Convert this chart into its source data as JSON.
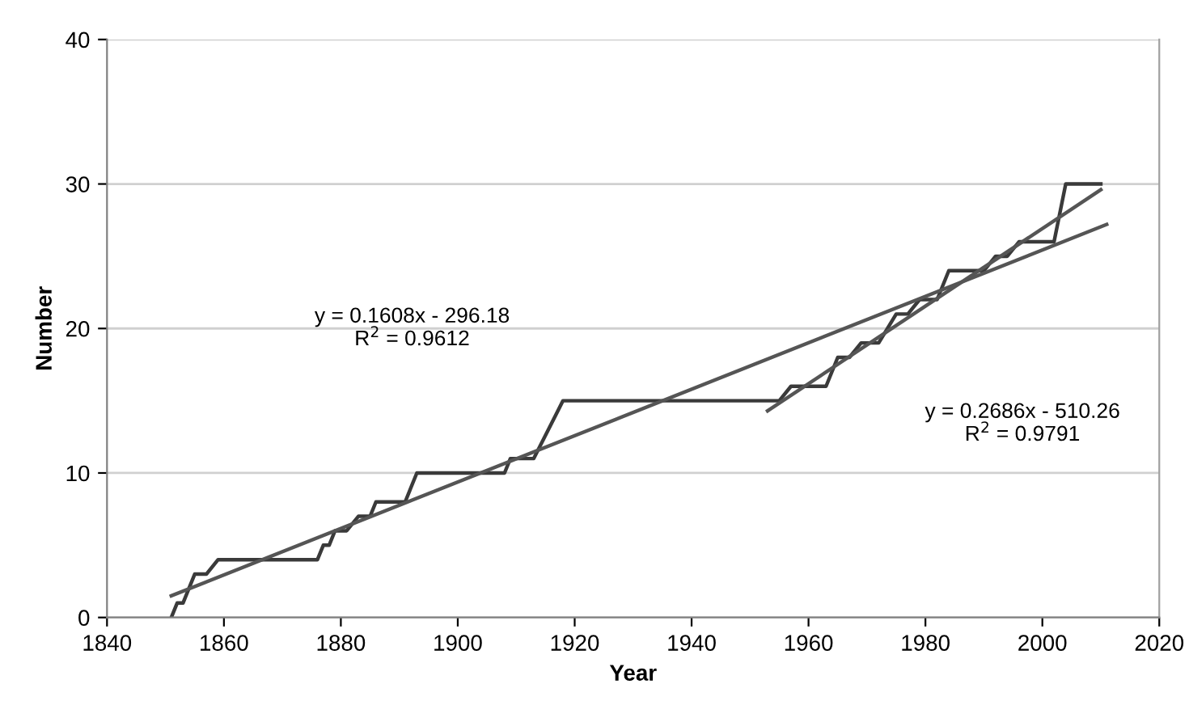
{
  "chart_data": {
    "type": "line",
    "xlabel": "Year",
    "ylabel": "Number",
    "xlim": [
      1840,
      2020
    ],
    "xticks": [
      1840,
      1860,
      1880,
      1900,
      1920,
      1940,
      1960,
      1980,
      2000,
      2020
    ],
    "ylim": [
      0,
      40
    ],
    "yticks": [
      0,
      10,
      20,
      30,
      40
    ],
    "grid": "y",
    "legend": false,
    "marker": "none",
    "line_style": "solid",
    "series": [
      {
        "color": "#3a3a3a",
        "x": [
          1851,
          1852,
          1853,
          1855,
          1857,
          1859,
          1876,
          1877,
          1878,
          1879,
          1881,
          1883,
          1885,
          1886,
          1891,
          1893,
          1908,
          1909,
          1913,
          1918,
          1955,
          1957,
          1960,
          1963,
          1965,
          1967,
          1969,
          1972,
          1975,
          1977,
          1979,
          1982,
          1984,
          1988,
          1990,
          1992,
          1994,
          1996,
          2002,
          2004,
          2010
        ],
        "values": [
          0,
          1,
          1,
          3,
          3,
          4,
          4,
          5,
          5,
          6,
          6,
          7,
          7,
          8,
          8,
          10,
          10,
          11,
          11,
          15,
          15,
          16,
          16,
          16,
          18,
          18,
          19,
          19,
          21,
          21,
          22,
          22,
          24,
          24,
          24,
          25,
          25,
          26,
          26,
          30,
          30
        ]
      },
      {
        "color": "#555555",
        "x": [
          1851,
          2011
        ],
        "values": [
          1.5,
          27.2
        ]
      },
      {
        "color": "#555555",
        "x": [
          1953,
          2010
        ],
        "values": [
          14.3,
          29.6
        ]
      }
    ],
    "annotations": [
      "y = 0.1608x - 296.18\nR$^{2}$ = 0.9612",
      "y = 0.2686x - 510.26\nR$^{2}$ = 0.9791"
    ]
  }
}
